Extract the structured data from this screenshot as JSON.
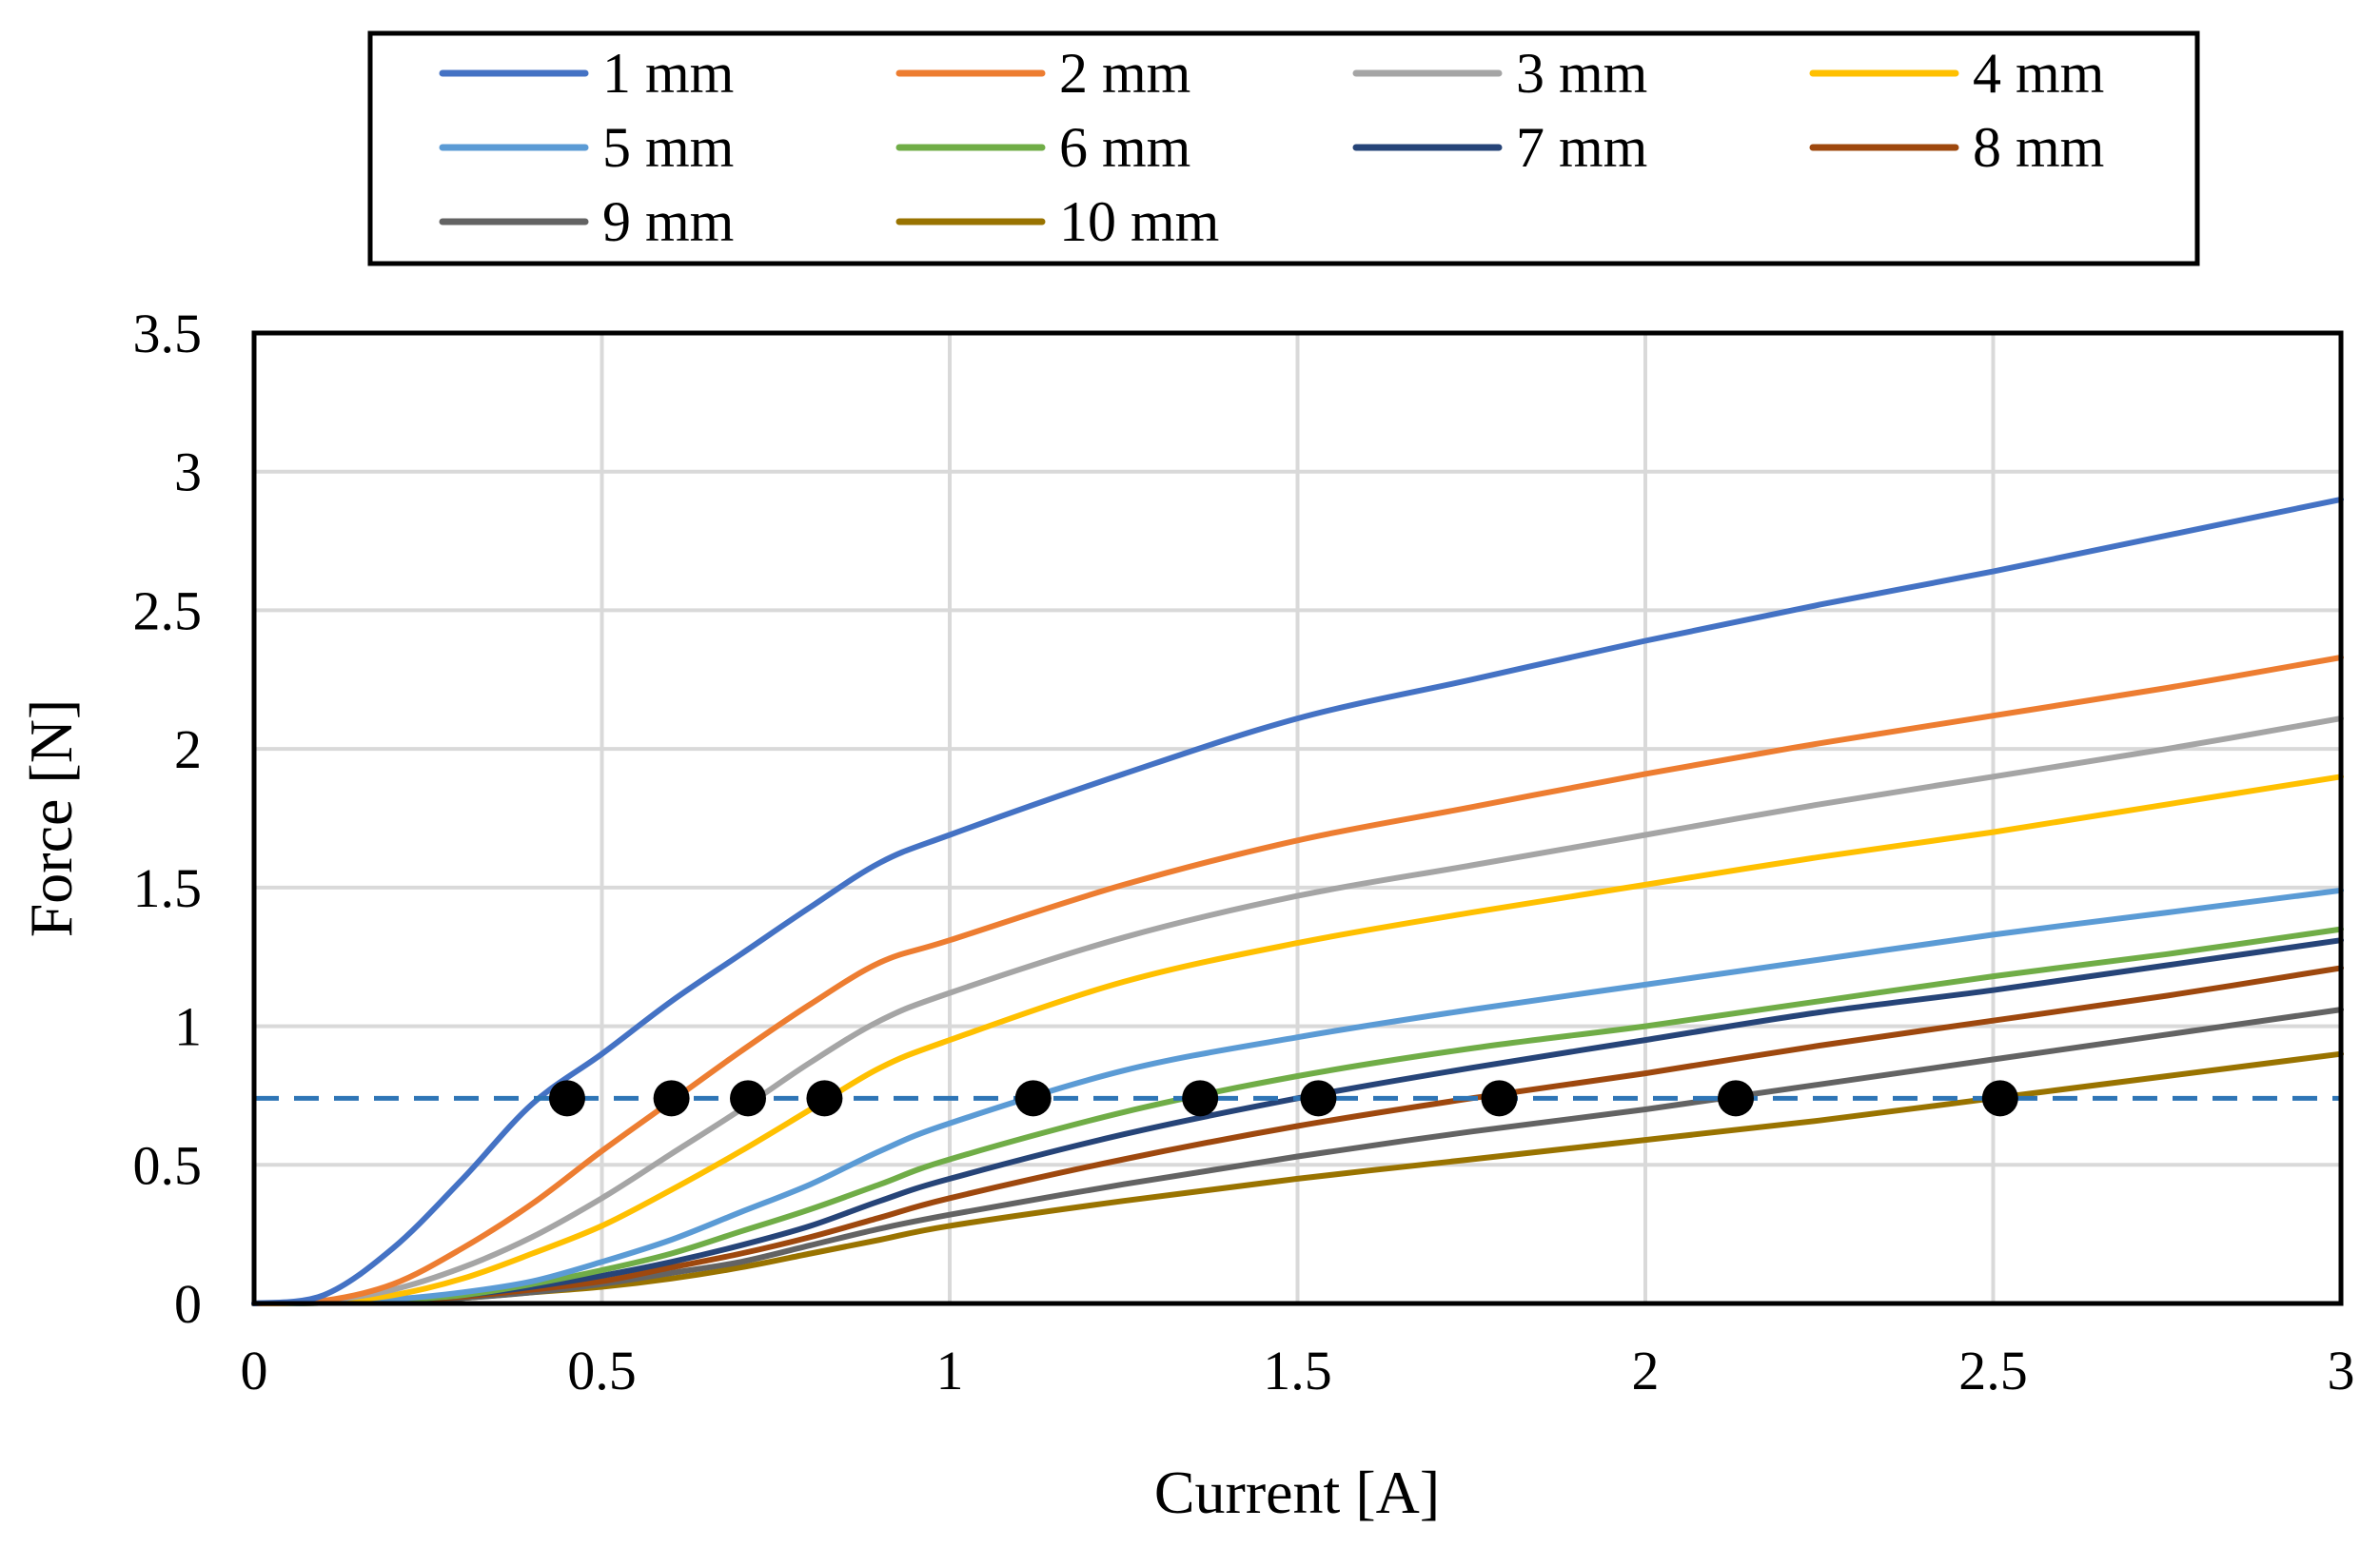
{
  "chart_data": {
    "type": "line",
    "title": "",
    "xlabel": "Current [A]",
    "ylabel": "Force [N]",
    "xlim": [
      0,
      3
    ],
    "ylim": [
      0,
      3.5
    ],
    "xticks": [
      0,
      0.5,
      1,
      1.5,
      2,
      2.5,
      3
    ],
    "yticks": [
      0,
      0.5,
      1,
      1.5,
      2,
      2.5,
      3,
      3.5
    ],
    "xtick_labels": [
      "0",
      "0.5",
      "1",
      "1.5",
      "2",
      "2.5",
      "3"
    ],
    "ytick_labels": [
      "0",
      "0.5",
      "1",
      "1.5",
      "2",
      "2.5",
      "3",
      "3.5"
    ],
    "grid": true,
    "legend_position": "top",
    "x": [
      0,
      0.1,
      0.2,
      0.3,
      0.4,
      0.5,
      0.6,
      0.7,
      0.8,
      0.9,
      1.0,
      1.25,
      1.5,
      1.75,
      2.0,
      2.25,
      2.5,
      2.75,
      3.0
    ],
    "series": [
      {
        "name": "1 mm",
        "color": "#4472C4",
        "values": [
          0,
          0.03,
          0.2,
          0.45,
          0.72,
          0.9,
          1.09,
          1.26,
          1.43,
          1.59,
          1.69,
          1.91,
          2.11,
          2.25,
          2.39,
          2.52,
          2.64,
          2.77,
          2.9
        ]
      },
      {
        "name": "2 mm",
        "color": "#ED7D31",
        "values": [
          0,
          0.01,
          0.07,
          0.2,
          0.36,
          0.55,
          0.73,
          0.91,
          1.08,
          1.23,
          1.31,
          1.51,
          1.67,
          1.79,
          1.91,
          2.02,
          2.12,
          2.22,
          2.33
        ]
      },
      {
        "name": "3 mm",
        "color": "#A5A5A5",
        "values": [
          0,
          0.01,
          0.05,
          0.13,
          0.24,
          0.38,
          0.54,
          0.7,
          0.87,
          1.02,
          1.12,
          1.32,
          1.47,
          1.58,
          1.69,
          1.8,
          1.9,
          2.0,
          2.11
        ]
      },
      {
        "name": "4 mm",
        "color": "#FFC000",
        "values": [
          0,
          0.005,
          0.03,
          0.09,
          0.18,
          0.28,
          0.41,
          0.55,
          0.7,
          0.85,
          0.95,
          1.16,
          1.3,
          1.41,
          1.51,
          1.61,
          1.7,
          1.8,
          1.9
        ]
      },
      {
        "name": "5 mm",
        "color": "#5B9BD5",
        "values": [
          0,
          0.003,
          0.015,
          0.04,
          0.08,
          0.15,
          0.23,
          0.33,
          0.43,
          0.55,
          0.65,
          0.84,
          0.96,
          1.06,
          1.15,
          1.24,
          1.33,
          1.41,
          1.49
        ]
      },
      {
        "name": "6 mm",
        "color": "#70AD47",
        "values": [
          0,
          0.002,
          0.012,
          0.03,
          0.07,
          0.12,
          0.18,
          0.26,
          0.34,
          0.43,
          0.52,
          0.69,
          0.82,
          0.92,
          1.0,
          1.09,
          1.18,
          1.26,
          1.35
        ]
      },
      {
        "name": "7 mm",
        "color": "#264478",
        "values": [
          0,
          0.002,
          0.01,
          0.03,
          0.06,
          0.1,
          0.15,
          0.21,
          0.28,
          0.37,
          0.45,
          0.61,
          0.74,
          0.85,
          0.95,
          1.05,
          1.13,
          1.22,
          1.31
        ]
      },
      {
        "name": "8 mm",
        "color": "#9E480E",
        "values": [
          0,
          0.002,
          0.01,
          0.025,
          0.05,
          0.08,
          0.13,
          0.18,
          0.24,
          0.31,
          0.38,
          0.52,
          0.64,
          0.74,
          0.83,
          0.93,
          1.02,
          1.11,
          1.21
        ]
      },
      {
        "name": "9 mm",
        "color": "#636363",
        "values": [
          0,
          0.002,
          0.008,
          0.02,
          0.04,
          0.07,
          0.11,
          0.15,
          0.21,
          0.27,
          0.32,
          0.43,
          0.53,
          0.62,
          0.7,
          0.79,
          0.88,
          0.97,
          1.06
        ]
      },
      {
        "name": "10 mm",
        "color": "#997300",
        "values": [
          0,
          0.002,
          0.008,
          0.02,
          0.04,
          0.06,
          0.09,
          0.13,
          0.18,
          0.23,
          0.28,
          0.37,
          0.45,
          0.52,
          0.59,
          0.66,
          0.74,
          0.82,
          0.9
        ]
      }
    ],
    "threshold": {
      "y": 0.74,
      "color": "#2E75B6",
      "style": "dashed"
    },
    "intersection_points": {
      "color": "#000000",
      "x": [
        0.45,
        0.6,
        0.71,
        0.82,
        1.12,
        1.36,
        1.53,
        1.79,
        2.13,
        2.51
      ],
      "y": [
        0.74,
        0.74,
        0.74,
        0.74,
        0.74,
        0.74,
        0.74,
        0.74,
        0.74,
        0.74
      ]
    }
  }
}
